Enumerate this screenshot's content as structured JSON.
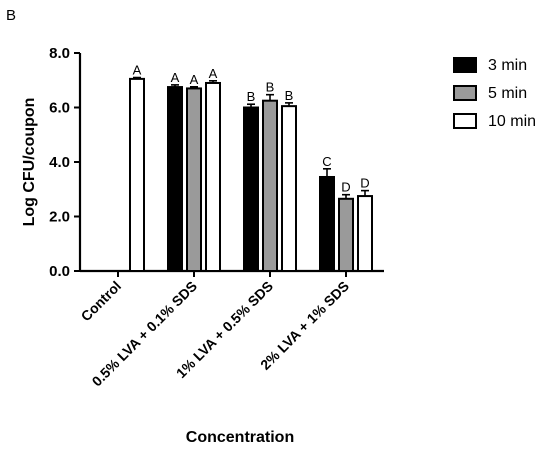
{
  "panel_label": "B",
  "chart_data": {
    "type": "bar",
    "ylabel": "Log CFU/coupon",
    "xlabel": "Concentration",
    "ylim": [
      0,
      8
    ],
    "yticks": [
      "0.0",
      "2.0",
      "4.0",
      "6.0",
      "8.0"
    ],
    "categories": [
      "Control",
      "0.5% LVA + 0.1% SDS",
      "1% LVA + 0.5% SDS",
      "2% LVA + 1% SDS"
    ],
    "series": [
      {
        "name": "3 min",
        "color": "#000000",
        "values": [
          null,
          6.75,
          6.0,
          3.45
        ],
        "errors": [
          null,
          0.08,
          0.12,
          0.3
        ],
        "labels": [
          "",
          "A",
          "B",
          "C"
        ]
      },
      {
        "name": "5 min",
        "color": "#9a9a9a",
        "values": [
          null,
          6.7,
          6.25,
          2.65
        ],
        "errors": [
          null,
          0.06,
          0.22,
          0.15
        ],
        "labels": [
          "",
          "A",
          "B",
          "D"
        ]
      },
      {
        "name": "10 min",
        "color": "#ffffff",
        "values": [
          7.05,
          6.9,
          6.05,
          2.75
        ],
        "errors": [
          0.05,
          0.08,
          0.12,
          0.2
        ],
        "labels": [
          "A",
          "A",
          "B",
          "D"
        ]
      }
    ],
    "legend_position": "top-right",
    "grid": false
  }
}
